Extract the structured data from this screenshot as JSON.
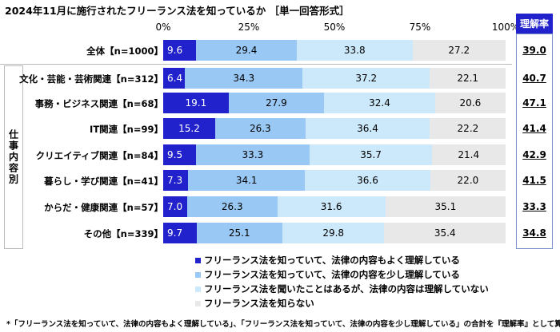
{
  "chart_data": {
    "type": "bar",
    "orientation": "horizontal-stacked-100",
    "title": "2024年11月に施行されたフリーランス法を知っているか ［単一回答形式］",
    "xlim": [
      0,
      100
    ],
    "ticks": [
      "0%",
      "25%",
      "50%",
      "75%",
      "100%"
    ],
    "categories": [
      "全体【n=1000】",
      "文化・芸能・芸術関連【n=312】",
      "事務・ビジネス関連【n=68】",
      "IT関連【n=99】",
      "クリエイティブ関連【n=84】",
      "暮らし・学び関連【n=41】",
      "からだ・健康関連【n=57】",
      "その他【n=339】"
    ],
    "series": [
      {
        "name": "フリーランス法を知っていて、法律の内容もよく理解している",
        "color": "#2222cc",
        "values": [
          9.6,
          6.4,
          19.1,
          15.2,
          9.5,
          7.3,
          7.0,
          9.7
        ]
      },
      {
        "name": "フリーランス法を知っていて、法律の内容を少し理解している",
        "color": "#99c8f4",
        "values": [
          29.4,
          34.3,
          27.9,
          26.3,
          33.3,
          34.1,
          26.3,
          25.1
        ]
      },
      {
        "name": "フリーランス法を聞いたことはあるが、法律の内容は理解していない",
        "color": "#cce8fb",
        "values": [
          33.8,
          37.2,
          32.4,
          36.4,
          35.7,
          36.6,
          31.6,
          29.8
        ]
      },
      {
        "name": "フリーランス法を知らない",
        "color": "#e8e8e8",
        "values": [
          27.2,
          22.1,
          20.6,
          22.2,
          21.4,
          22.0,
          35.1,
          35.4
        ]
      }
    ],
    "rate_header": "理解率",
    "rates": [
      "39.0",
      "40.7",
      "47.1",
      "41.4",
      "42.9",
      "41.5",
      "33.3",
      "34.8"
    ],
    "group_label": "仕事内容別",
    "legend_position": "bottom"
  },
  "footnote": "*「フリーランス法を知っていて、法律の内容もよく理解している」、「フリーランス法を知っていて、法律の内容を少し理解している」の合計を『理解率』として算出"
}
